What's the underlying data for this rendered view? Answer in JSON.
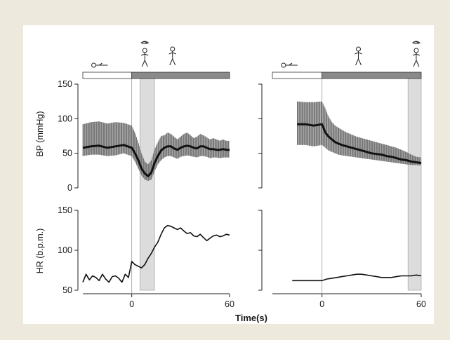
{
  "chart_data": {
    "type": "line",
    "xlabel": "Time(s)",
    "panels": [
      {
        "name": "supine-to-standing-left",
        "bp_ylim": [
          0,
          150
        ],
        "bp_yticks": [
          0,
          50,
          100,
          150
        ],
        "hr_ylim": [
          50,
          150
        ],
        "hr_yticks": [
          50,
          100,
          150
        ],
        "xlim": [
          -30,
          60
        ],
        "xticks": [
          0,
          60
        ],
        "show_ylabels": true,
        "shade_interval": [
          5,
          14
        ],
        "marker_line_x": 0,
        "posture_bar": [
          {
            "from": -30,
            "to": 0,
            "state": "supine",
            "color": "#ffffff"
          },
          {
            "from": 0,
            "to": 60,
            "state": "upright",
            "color": "#8a8a8a"
          }
        ],
        "icons": [
          {
            "type": "supine-person-icon",
            "x": -19
          },
          {
            "type": "dizzy-standing-person-icon",
            "x": 8
          },
          {
            "type": "standing-person-icon",
            "x": 25
          }
        ],
        "bp_series": {
          "x": [
            -30,
            -25,
            -20,
            -15,
            -10,
            -5,
            0,
            2,
            4,
            6,
            8,
            10,
            12,
            14,
            16,
            18,
            20,
            22,
            24,
            26,
            28,
            30,
            32,
            34,
            36,
            38,
            40,
            42,
            44,
            46,
            48,
            50,
            52,
            54,
            56,
            58,
            60
          ],
          "systolic": [
            92,
            95,
            96,
            93,
            95,
            94,
            90,
            80,
            66,
            50,
            38,
            34,
            40,
            56,
            66,
            75,
            76,
            80,
            78,
            74,
            70,
            74,
            78,
            80,
            76,
            72,
            74,
            78,
            76,
            73,
            70,
            72,
            70,
            68,
            70,
            68,
            68
          ],
          "mean": [
            58,
            60,
            61,
            58,
            60,
            62,
            58,
            50,
            40,
            28,
            21,
            17,
            22,
            36,
            46,
            54,
            58,
            60,
            60,
            57,
            55,
            58,
            60,
            61,
            60,
            58,
            57,
            60,
            60,
            58,
            56,
            56,
            55,
            55,
            56,
            55,
            55
          ],
          "diastolic": [
            46,
            48,
            48,
            46,
            47,
            50,
            46,
            38,
            28,
            18,
            12,
            10,
            12,
            24,
            34,
            40,
            44,
            46,
            46,
            44,
            42,
            45,
            46,
            47,
            46,
            45,
            44,
            46,
            46,
            45,
            43,
            44,
            44,
            43,
            44,
            44,
            44
          ]
        },
        "hr_series": {
          "x": [
            -30,
            -28,
            -26,
            -24,
            -22,
            -20,
            -18,
            -16,
            -14,
            -12,
            -10,
            -8,
            -6,
            -4,
            -2,
            0,
            2,
            4,
            6,
            8,
            10,
            12,
            14,
            16,
            18,
            20,
            22,
            24,
            26,
            28,
            30,
            32,
            34,
            36,
            38,
            40,
            42,
            44,
            46,
            48,
            50,
            52,
            54,
            56,
            58,
            60
          ],
          "values": [
            60,
            70,
            63,
            68,
            66,
            62,
            70,
            64,
            60,
            67,
            68,
            65,
            60,
            70,
            66,
            86,
            82,
            80,
            78,
            82,
            90,
            96,
            104,
            110,
            120,
            128,
            131,
            130,
            128,
            126,
            128,
            124,
            121,
            122,
            118,
            117,
            120,
            116,
            112,
            115,
            118,
            119,
            117,
            118,
            120,
            119
          ]
        }
      },
      {
        "name": "supine-to-standing-right",
        "bp_ylim": [
          0,
          150
        ],
        "bp_yticks": [
          0,
          50,
          100,
          150
        ],
        "hr_ylim": [
          50,
          150
        ],
        "hr_yticks": [
          50,
          100,
          150
        ],
        "xlim": [
          -30,
          60
        ],
        "xticks": [
          0,
          60
        ],
        "show_ylabels": false,
        "shade_interval": [
          52,
          60
        ],
        "marker_line_x": 0,
        "posture_bar": [
          {
            "from": -30,
            "to": 0,
            "state": "supine",
            "color": "#ffffff"
          },
          {
            "from": 0,
            "to": 60,
            "state": "upright",
            "color": "#8a8a8a"
          }
        ],
        "icons": [
          {
            "type": "supine-person-icon",
            "x": -19
          },
          {
            "type": "standing-person-icon",
            "x": 22
          },
          {
            "type": "dizzy-standing-person-icon",
            "x": 57
          }
        ],
        "bp_series": {
          "x": [
            -15,
            -10,
            -5,
            0,
            2,
            4,
            6,
            8,
            10,
            12,
            15,
            18,
            21,
            24,
            27,
            30,
            33,
            36,
            39,
            42,
            45,
            48,
            51,
            54,
            57,
            60
          ],
          "systolic": [
            125,
            124,
            124,
            125,
            115,
            103,
            95,
            90,
            87,
            84,
            80,
            77,
            74,
            72,
            70,
            68,
            66,
            64,
            62,
            60,
            58,
            55,
            52,
            48,
            45,
            44
          ],
          "mean": [
            92,
            92,
            90,
            92,
            80,
            74,
            70,
            66,
            64,
            62,
            60,
            58,
            56,
            54,
            52,
            50,
            49,
            48,
            46,
            45,
            43,
            41,
            40,
            38,
            37,
            36
          ],
          "diastolic": [
            62,
            62,
            60,
            62,
            58,
            54,
            52,
            50,
            48,
            47,
            46,
            45,
            44,
            43,
            42,
            41,
            40,
            39,
            38,
            37,
            36,
            35,
            34,
            33,
            33,
            32
          ]
        },
        "hr_series": {
          "x": [
            -18,
            -15,
            -10,
            -5,
            0,
            3,
            6,
            9,
            12,
            15,
            18,
            21,
            24,
            27,
            30,
            33,
            36,
            39,
            42,
            45,
            48,
            51,
            54,
            57,
            60
          ],
          "values": [
            62,
            62,
            62,
            62,
            62,
            64,
            65,
            66,
            67,
            68,
            69,
            70,
            70,
            69,
            68,
            67,
            66,
            66,
            66,
            67,
            68,
            68,
            68,
            69,
            68
          ]
        }
      }
    ],
    "bp_ylabel": "BP (mmHg)",
    "hr_ylabel": "HR (b.p.m.)"
  }
}
